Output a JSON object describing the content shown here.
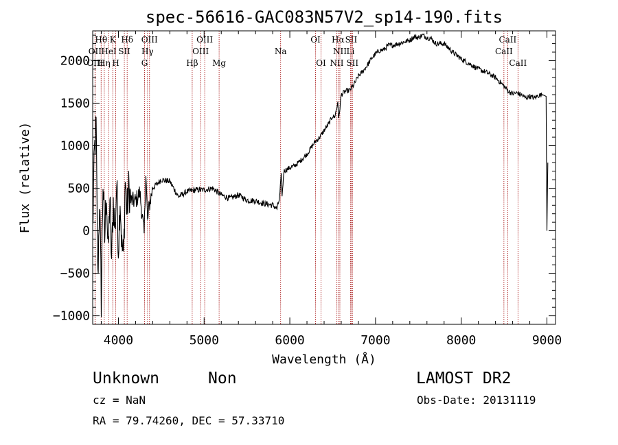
{
  "chart_data": {
    "type": "line",
    "title": "spec-56616-GAC083N57V2_sp14-190.fits",
    "xlabel": "Wavelength (Å)",
    "ylabel": "Flux (relative)",
    "xlim": [
      3700,
      9100
    ],
    "ylim": [
      -1100,
      2350
    ],
    "xticks": [
      4000,
      5000,
      6000,
      7000,
      8000,
      9000
    ],
    "yticks": [
      -1000,
      -500,
      0,
      500,
      1000,
      1500,
      2000
    ],
    "grid": false,
    "series": [
      {
        "color": "#000000",
        "x": [
          3700,
          3720,
          3740,
          3760,
          3780,
          3800,
          3820,
          3840,
          3860,
          3880,
          3900,
          3920,
          3940,
          3960,
          3980,
          4000,
          4020,
          4040,
          4060,
          4080,
          4100,
          4120,
          4150,
          4200,
          4250,
          4300,
          4320,
          4340,
          4360,
          4400,
          4450,
          4500,
          4600,
          4700,
          4800,
          4900,
          5000,
          5100,
          5200,
          5300,
          5400,
          5500,
          5600,
          5700,
          5800,
          5850,
          5880,
          5900,
          5910,
          5930,
          5960,
          6000,
          6050,
          6100,
          6150,
          6200,
          6250,
          6300,
          6350,
          6400,
          6450,
          6500,
          6520,
          6550,
          6560,
          6570,
          6600,
          6650,
          6700,
          6750,
          6800,
          6850,
          6900,
          6950,
          7000,
          7050,
          7100,
          7150,
          7200,
          7300,
          7400,
          7450,
          7500,
          7550,
          7600,
          7650,
          7700,
          7800,
          7900,
          8000,
          8100,
          8200,
          8300,
          8400,
          8450,
          8500,
          8550,
          8600,
          8650,
          8700,
          8750,
          8800,
          8850,
          8900,
          8950,
          8990,
          9000,
          9010
        ],
        "y": [
          0,
          900,
          1230,
          -600,
          400,
          -820,
          600,
          -100,
          500,
          -300,
          400,
          -350,
          350,
          0,
          560,
          -200,
          400,
          -200,
          -300,
          600,
          200,
          500,
          350,
          350,
          450,
          -50,
          700,
          100,
          300,
          500,
          550,
          600,
          580,
          400,
          460,
          480,
          480,
          500,
          420,
          380,
          420,
          360,
          350,
          320,
          300,
          260,
          380,
          650,
          400,
          700,
          720,
          740,
          760,
          800,
          850,
          900,
          980,
          1050,
          1100,
          1180,
          1250,
          1350,
          1330,
          1450,
          1530,
          1300,
          1600,
          1640,
          1650,
          1720,
          1820,
          1870,
          1940,
          2020,
          2080,
          2120,
          2130,
          2180,
          2180,
          2210,
          2240,
          2280,
          2270,
          2300,
          2270,
          2260,
          2200,
          2200,
          2100,
          2020,
          1960,
          1900,
          1860,
          1800,
          1750,
          1700,
          1640,
          1610,
          1620,
          1600,
          1560,
          1580,
          1560,
          1590,
          1600,
          1580,
          0,
          800
        ]
      }
    ],
    "lines": [
      {
        "label": "Hθ",
        "x": 3798,
        "row": 1
      },
      {
        "label": "K",
        "x": 3934,
        "row": 1
      },
      {
        "label": "Hδ",
        "x": 4102,
        "row": 1
      },
      {
        "label": "OIII",
        "x": 4363,
        "row": 1
      },
      {
        "label": "OIII",
        "x": 5007,
        "row": 1
      },
      {
        "label": "OI",
        "x": 6300,
        "row": 1
      },
      {
        "label": "Hα",
        "x": 6563,
        "row": 1
      },
      {
        "label": "SII",
        "x": 6716,
        "row": 1
      },
      {
        "label": "CaII",
        "x": 8542,
        "row": 1
      },
      {
        "label": "OII",
        "x": 3727,
        "row": 2
      },
      {
        "label": "HeI",
        "x": 3889,
        "row": 2
      },
      {
        "label": "SII",
        "x": 4069,
        "row": 2
      },
      {
        "label": "Hγ",
        "x": 4340,
        "row": 2
      },
      {
        "label": "OIII",
        "x": 4959,
        "row": 2
      },
      {
        "label": "Na",
        "x": 5893,
        "row": 2
      },
      {
        "label": "NII",
        "x": 6584,
        "row": 2
      },
      {
        "label": "Li",
        "x": 6708,
        "row": 2
      },
      {
        "label": "CaII",
        "x": 8498,
        "row": 2
      },
      {
        "label": "OIII",
        "x": 3727,
        "row": 3
      },
      {
        "label": "Hη",
        "x": 3835,
        "row": 3
      },
      {
        "label": "H",
        "x": 3969,
        "row": 3
      },
      {
        "label": "G",
        "x": 4305,
        "row": 3
      },
      {
        "label": "Hβ",
        "x": 4861,
        "row": 3
      },
      {
        "label": "Mg",
        "x": 5175,
        "row": 3
      },
      {
        "label": "OI",
        "x": 6364,
        "row": 3
      },
      {
        "label": "NII",
        "x": 6548,
        "row": 3
      },
      {
        "label": "SII",
        "x": 6731,
        "row": 3
      },
      {
        "label": "CaII",
        "x": 8662,
        "row": 3
      }
    ]
  },
  "info": {
    "class": "Unknown",
    "subclass": "Non",
    "survey": "LAMOST DR2",
    "cz": "cz = NaN",
    "obsdate": "Obs-Date: 20131119",
    "coords": "RA =  79.74260, DEC =  57.33710"
  }
}
